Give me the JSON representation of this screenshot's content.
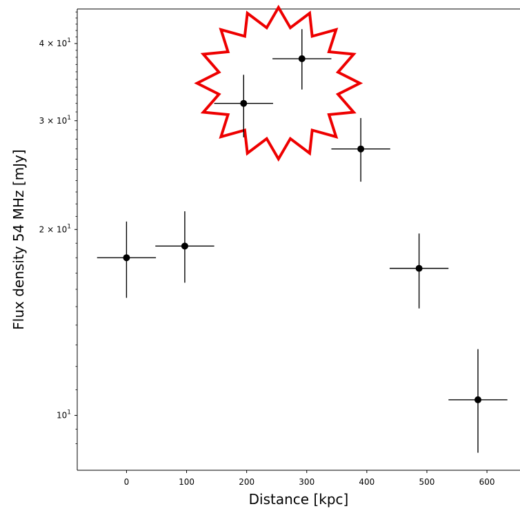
{
  "chart_data": {
    "type": "scatter",
    "title": "",
    "xlabel": "Distance [kpc]",
    "ylabel": "Flux density 54 MHz [mJy]",
    "xlim": [
      -82,
      655
    ],
    "ylim": [
      8.15,
      45.5
    ],
    "yscale": "log",
    "grid": false,
    "x_ticks": [
      {
        "value": 0,
        "label": "0"
      },
      {
        "value": 100,
        "label": "100"
      },
      {
        "value": 200,
        "label": "200"
      },
      {
        "value": 300,
        "label": "300"
      },
      {
        "value": 400,
        "label": "400"
      },
      {
        "value": 500,
        "label": "500"
      },
      {
        "value": 600,
        "label": "600"
      }
    ],
    "y_major_ticks": [
      {
        "value": 10,
        "base": "10",
        "exp": "1",
        "mant": ""
      },
      {
        "value": 20,
        "base": "10",
        "exp": "1",
        "mant": "2 × "
      },
      {
        "value": 30,
        "base": "10",
        "exp": "1",
        "mant": "3 × "
      },
      {
        "value": 40,
        "base": "10",
        "exp": "1",
        "mant": "4 × "
      }
    ],
    "y_minor_ticks": [
      9,
      9.5,
      11,
      12,
      13,
      14,
      15,
      16,
      17,
      18,
      19,
      21,
      22,
      23,
      24,
      25,
      26,
      27,
      28,
      29,
      31,
      32,
      33,
      34,
      35,
      36,
      37,
      38,
      39,
      41,
      42,
      43,
      44,
      45
    ],
    "points": [
      {
        "x": 0,
        "y": 18.0,
        "xerr": 49,
        "yerr_low": 2.5,
        "yerr_high": 2.6
      },
      {
        "x": 97,
        "y": 18.8,
        "xerr": 49,
        "yerr_low": 2.4,
        "yerr_high": 2.6
      },
      {
        "x": 195,
        "y": 32.0,
        "xerr": 49,
        "yerr_low": 3.8,
        "yerr_high": 3.6
      },
      {
        "x": 292,
        "y": 37.8,
        "xerr": 49,
        "yerr_low": 4.1,
        "yerr_high": 4.4
      },
      {
        "x": 390,
        "y": 27.0,
        "xerr": 49,
        "yerr_low": 3.1,
        "yerr_high": 3.3
      },
      {
        "x": 487,
        "y": 17.3,
        "xerr": 49,
        "yerr_low": 2.4,
        "yerr_high": 2.4
      },
      {
        "x": 585,
        "y": 10.6,
        "xerr": 49,
        "yerr_low": 1.9,
        "yerr_high": 2.2
      }
    ],
    "annotation": {
      "shape": "starburst",
      "color": "#ee0000",
      "center_x": 253,
      "center_y": 34.5
    },
    "marker_color": "#000000"
  }
}
